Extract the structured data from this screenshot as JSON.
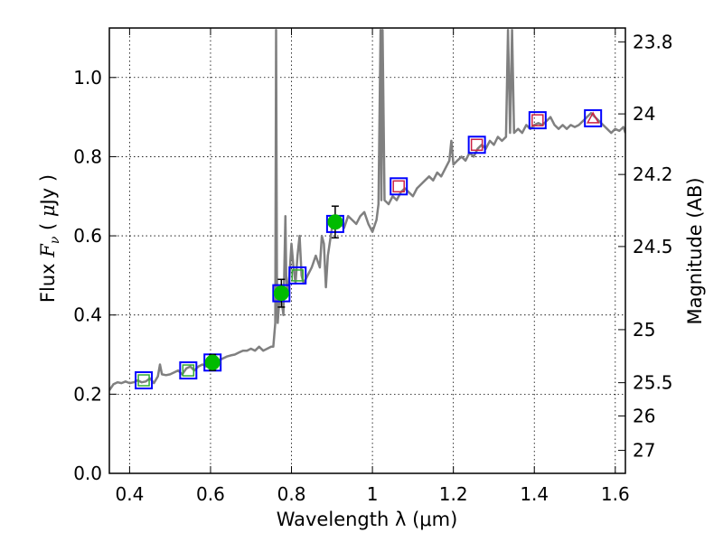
{
  "chart_data": {
    "type": "line",
    "xlabel": "Wavelength  λ (μm)",
    "ylabel": "Flux  F_ν  ( μJy )",
    "ylabel_right": "Magnitude (AB)",
    "xlim": [
      0.35,
      1.625
    ],
    "ylim": [
      0.0,
      1.125
    ],
    "grid": true,
    "x_ticks": [
      0.4,
      0.6,
      0.8,
      1.0,
      1.2,
      1.4,
      1.6
    ],
    "x_tick_labels": [
      "0.4",
      "0.6",
      "0.8",
      "1",
      "1.2",
      "1.4",
      "1.6"
    ],
    "y_ticks": [
      0.0,
      0.2,
      0.4,
      0.6,
      0.8,
      1.0
    ],
    "y_tick_labels": [
      "0.0",
      "0.2",
      "0.4",
      "0.6",
      "0.8",
      "1.0"
    ],
    "right_ticks": [
      {
        "label": "23.8",
        "flux": 1.09
      },
      {
        "label": "24",
        "flux": 0.908
      },
      {
        "label": "24.2",
        "flux": 0.755
      },
      {
        "label": "24.5",
        "flux": 0.573
      },
      {
        "label": "25",
        "flux": 0.363
      },
      {
        "label": "25.5",
        "flux": 0.229
      },
      {
        "label": "26",
        "flux": 0.145
      },
      {
        "label": "27",
        "flux": 0.058
      }
    ],
    "series": [
      {
        "style": "spectrum-line",
        "color": "#808080",
        "points": [
          [
            0.35,
            0.21
          ],
          [
            0.36,
            0.225
          ],
          [
            0.37,
            0.23
          ],
          [
            0.38,
            0.228
          ],
          [
            0.39,
            0.232
          ],
          [
            0.4,
            0.228
          ],
          [
            0.41,
            0.23
          ],
          [
            0.42,
            0.235
          ],
          [
            0.43,
            0.23
          ],
          [
            0.44,
            0.232
          ],
          [
            0.45,
            0.24
          ],
          [
            0.46,
            0.228
          ],
          [
            0.47,
            0.245
          ],
          [
            0.475,
            0.275
          ],
          [
            0.48,
            0.25
          ],
          [
            0.49,
            0.248
          ],
          [
            0.5,
            0.25
          ],
          [
            0.51,
            0.255
          ],
          [
            0.52,
            0.26
          ],
          [
            0.53,
            0.25
          ],
          [
            0.54,
            0.265
          ],
          [
            0.55,
            0.27
          ],
          [
            0.56,
            0.26
          ],
          [
            0.57,
            0.27
          ],
          [
            0.58,
            0.275
          ],
          [
            0.59,
            0.27
          ],
          [
            0.6,
            0.272
          ],
          [
            0.61,
            0.28
          ],
          [
            0.62,
            0.285
          ],
          [
            0.63,
            0.29
          ],
          [
            0.64,
            0.295
          ],
          [
            0.65,
            0.298
          ],
          [
            0.66,
            0.3
          ],
          [
            0.67,
            0.305
          ],
          [
            0.68,
            0.31
          ],
          [
            0.69,
            0.31
          ],
          [
            0.7,
            0.315
          ],
          [
            0.71,
            0.31
          ],
          [
            0.72,
            0.32
          ],
          [
            0.73,
            0.31
          ],
          [
            0.74,
            0.315
          ],
          [
            0.75,
            0.32
          ],
          [
            0.755,
            0.32
          ],
          [
            0.76,
            0.38
          ],
          [
            0.762,
            1.12
          ],
          [
            0.764,
            0.5
          ],
          [
            0.766,
            0.38
          ],
          [
            0.77,
            0.44
          ],
          [
            0.775,
            0.44
          ],
          [
            0.78,
            0.4
          ],
          [
            0.785,
            0.65
          ],
          [
            0.787,
            0.5
          ],
          [
            0.79,
            0.45
          ],
          [
            0.795,
            0.5
          ],
          [
            0.8,
            0.58
          ],
          [
            0.805,
            0.52
          ],
          [
            0.81,
            0.48
          ],
          [
            0.815,
            0.55
          ],
          [
            0.82,
            0.6
          ],
          [
            0.825,
            0.5
          ],
          [
            0.83,
            0.48
          ],
          [
            0.84,
            0.5
          ],
          [
            0.85,
            0.52
          ],
          [
            0.86,
            0.55
          ],
          [
            0.87,
            0.52
          ],
          [
            0.875,
            0.6
          ],
          [
            0.88,
            0.58
          ],
          [
            0.885,
            0.47
          ],
          [
            0.89,
            0.55
          ],
          [
            0.9,
            0.62
          ],
          [
            0.91,
            0.63
          ],
          [
            0.92,
            0.635
          ],
          [
            0.93,
            0.62
          ],
          [
            0.94,
            0.65
          ],
          [
            0.95,
            0.64
          ],
          [
            0.96,
            0.63
          ],
          [
            0.97,
            0.65
          ],
          [
            0.98,
            0.66
          ],
          [
            0.99,
            0.63
          ],
          [
            1.0,
            0.61
          ],
          [
            1.01,
            0.64
          ],
          [
            1.015,
            0.68
          ],
          [
            1.02,
            1.12
          ],
          [
            1.022,
            0.69
          ],
          [
            1.025,
            1.12
          ],
          [
            1.03,
            0.69
          ],
          [
            1.04,
            0.68
          ],
          [
            1.05,
            0.7
          ],
          [
            1.06,
            0.69
          ],
          [
            1.07,
            0.71
          ],
          [
            1.08,
            0.72
          ],
          [
            1.09,
            0.71
          ],
          [
            1.1,
            0.7
          ],
          [
            1.11,
            0.72
          ],
          [
            1.12,
            0.73
          ],
          [
            1.13,
            0.74
          ],
          [
            1.14,
            0.75
          ],
          [
            1.15,
            0.74
          ],
          [
            1.16,
            0.76
          ],
          [
            1.17,
            0.75
          ],
          [
            1.18,
            0.77
          ],
          [
            1.19,
            0.79
          ],
          [
            1.195,
            0.84
          ],
          [
            1.2,
            0.78
          ],
          [
            1.21,
            0.79
          ],
          [
            1.22,
            0.8
          ],
          [
            1.23,
            0.79
          ],
          [
            1.24,
            0.81
          ],
          [
            1.25,
            0.8
          ],
          [
            1.26,
            0.82
          ],
          [
            1.27,
            0.83
          ],
          [
            1.28,
            0.82
          ],
          [
            1.29,
            0.84
          ],
          [
            1.3,
            0.83
          ],
          [
            1.31,
            0.85
          ],
          [
            1.32,
            0.84
          ],
          [
            1.33,
            0.85
          ],
          [
            1.335,
            1.12
          ],
          [
            1.34,
            0.86
          ],
          [
            1.345,
            1.12
          ],
          [
            1.35,
            0.86
          ],
          [
            1.36,
            0.87
          ],
          [
            1.37,
            0.86
          ],
          [
            1.38,
            0.88
          ],
          [
            1.39,
            0.87
          ],
          [
            1.4,
            0.88
          ],
          [
            1.41,
            0.885
          ],
          [
            1.42,
            0.88
          ],
          [
            1.43,
            0.89
          ],
          [
            1.44,
            0.9
          ],
          [
            1.45,
            0.88
          ],
          [
            1.46,
            0.87
          ],
          [
            1.47,
            0.88
          ],
          [
            1.48,
            0.87
          ],
          [
            1.49,
            0.88
          ],
          [
            1.5,
            0.875
          ],
          [
            1.51,
            0.88
          ],
          [
            1.52,
            0.89
          ],
          [
            1.53,
            0.9
          ],
          [
            1.54,
            0.91
          ],
          [
            1.55,
            0.9
          ],
          [
            1.56,
            0.89
          ],
          [
            1.57,
            0.88
          ],
          [
            1.58,
            0.87
          ],
          [
            1.59,
            0.86
          ],
          [
            1.6,
            0.87
          ],
          [
            1.61,
            0.865
          ],
          [
            1.62,
            0.875
          ],
          [
            1.625,
            0.86
          ]
        ]
      },
      {
        "style": "model-photometry-squares",
        "color": "#0000ff",
        "points": [
          [
            0.435,
            0.235
          ],
          [
            0.545,
            0.26
          ],
          [
            0.605,
            0.28
          ],
          [
            0.775,
            0.455
          ],
          [
            0.815,
            0.5
          ],
          [
            0.908,
            0.63
          ],
          [
            1.065,
            0.725
          ],
          [
            1.258,
            0.83
          ],
          [
            1.408,
            0.892
          ],
          [
            1.545,
            0.897
          ]
        ]
      },
      {
        "style": "observed-green-squares",
        "color": "#33aa33",
        "points": [
          [
            0.435,
            0.235
          ],
          [
            0.545,
            0.26
          ],
          [
            0.815,
            0.5
          ]
        ]
      },
      {
        "style": "observed-red-squares",
        "color": "#cc2244",
        "points": [
          [
            1.065,
            0.725
          ],
          [
            1.258,
            0.83
          ],
          [
            1.408,
            0.892
          ]
        ]
      },
      {
        "style": "observed-red-triangles",
        "color": "#cc2244",
        "points": [
          [
            1.545,
            0.897
          ]
        ]
      },
      {
        "style": "observed-green-circles",
        "color": "#00bb00",
        "points": [
          {
            "x": 0.605,
            "y": 0.28,
            "err": 0.02
          },
          {
            "x": 0.775,
            "y": 0.455,
            "err": 0.035
          },
          {
            "x": 0.908,
            "y": 0.635,
            "err": 0.04
          }
        ]
      }
    ]
  }
}
